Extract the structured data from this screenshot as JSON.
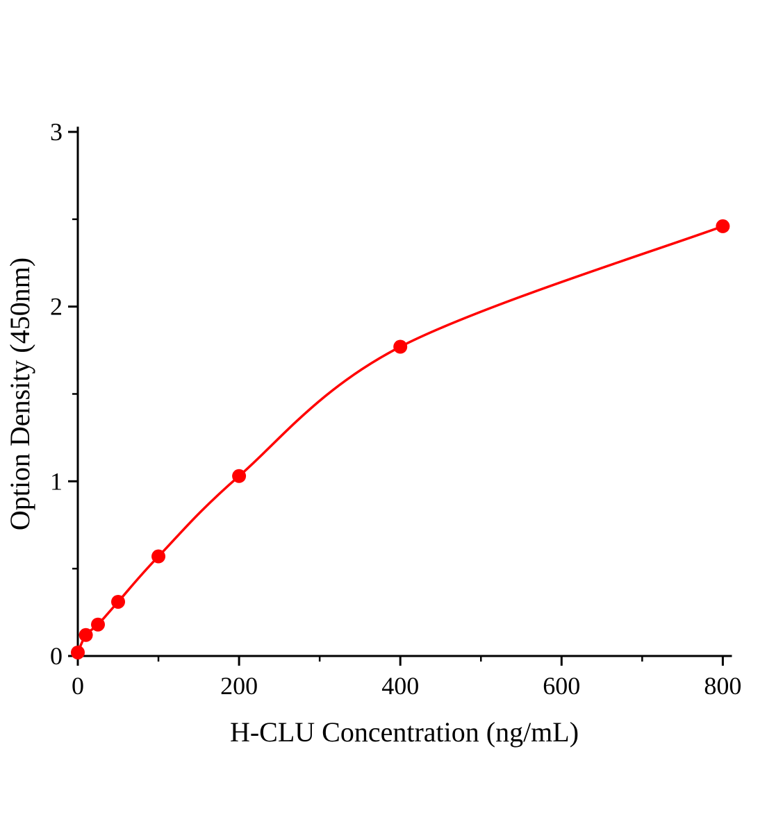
{
  "page": {
    "background": "#ffffff"
  },
  "chart_data": {
    "type": "scatter",
    "title": "",
    "xlabel": "H-CLU Concentration（ng/mL）",
    "ylabel": "Option Density（450nm）",
    "series": [
      {
        "x": [
          0,
          10,
          25,
          50,
          100,
          200,
          400,
          800
        ],
        "y": [
          0.02,
          0.12,
          0.18,
          0.31,
          0.57,
          1.03,
          1.77,
          2.46
        ]
      }
    ],
    "fit": "smooth curve through data points",
    "xlim": [
      0,
      810
    ],
    "ylim": [
      0,
      3
    ],
    "xticks": [
      0,
      200,
      400,
      600,
      800
    ],
    "yticks": [
      0,
      1,
      2,
      3
    ],
    "minor_xticks": [
      100,
      300,
      500,
      700
    ],
    "minor_yticks": [
      0.5,
      1.5,
      2.5
    ],
    "grid": false,
    "legend": false,
    "marker": "circle",
    "colors": {
      "line": "#ff0000",
      "marker": "#ff0000",
      "axis": "#000000",
      "background": "#ffffff"
    }
  }
}
